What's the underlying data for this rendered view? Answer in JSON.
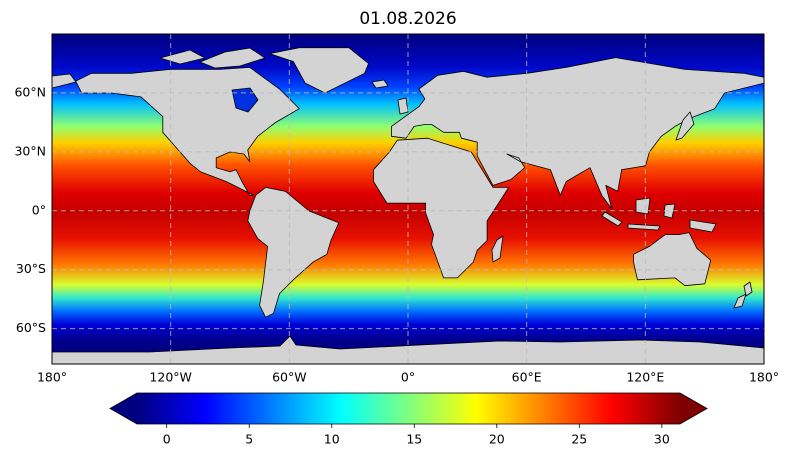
{
  "chart_data": {
    "type": "map",
    "title": "01.08.2026",
    "projection": "plate-carree",
    "xlim": [
      -180,
      180
    ],
    "ylim": [
      -78,
      90
    ],
    "xticks": [
      {
        "value": -180,
        "label": "180°"
      },
      {
        "value": -120,
        "label": "120°W"
      },
      {
        "value": -60,
        "label": "60°W"
      },
      {
        "value": 0,
        "label": "0°"
      },
      {
        "value": 60,
        "label": "60°E"
      },
      {
        "value": 120,
        "label": "120°E"
      },
      {
        "value": 180,
        "label": "180°"
      }
    ],
    "yticks": [
      {
        "value": -60,
        "label": "60°S"
      },
      {
        "value": -30,
        "label": "30°S"
      },
      {
        "value": 0,
        "label": "0°"
      },
      {
        "value": 30,
        "label": "30°N"
      },
      {
        "value": 60,
        "label": "60°N"
      }
    ],
    "grid": true,
    "colormap": "jet",
    "colorbar": {
      "clim": [
        -1.8,
        31.1
      ],
      "ticks": [
        0,
        5,
        10,
        15,
        20,
        25,
        30
      ],
      "extend": "both",
      "orientation": "horizontal"
    }
  }
}
